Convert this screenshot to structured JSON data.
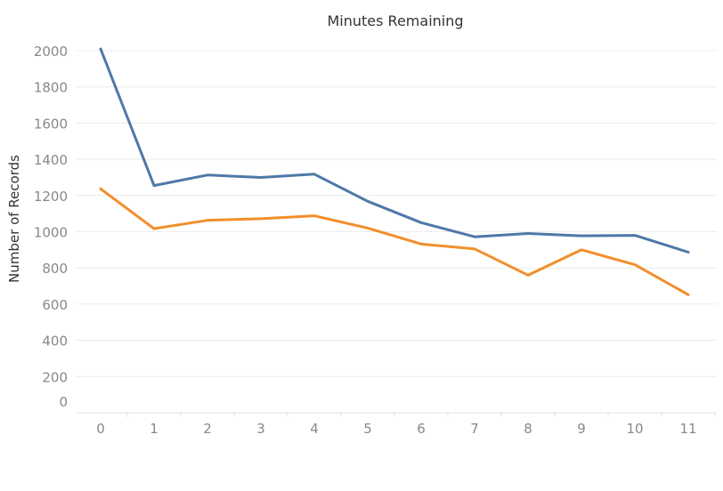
{
  "chart_data": {
    "type": "line",
    "title": "Minutes Remaining",
    "xlabel": "",
    "ylabel": "Number of Records",
    "x": [
      0,
      1,
      2,
      3,
      4,
      5,
      6,
      7,
      8,
      9,
      10,
      11
    ],
    "x_tick_labels": [
      "0",
      "1",
      "2",
      "3",
      "4",
      "5",
      "6",
      "7",
      "8",
      "9",
      "10",
      "11"
    ],
    "ylim": [
      0,
      2000
    ],
    "y_ticks": [
      0,
      200,
      400,
      600,
      800,
      1000,
      1200,
      1400,
      1600,
      1800,
      2000
    ],
    "y_tick_labels": [
      "0",
      "200",
      "400",
      "600",
      "800",
      "1000",
      "1200",
      "1400",
      "1600",
      "1800",
      "2000"
    ],
    "grid": true,
    "series": [
      {
        "color": "#4e79a7",
        "values": [
          2010,
          1255,
          1313,
          1300,
          1318,
          1168,
          1050,
          972,
          990,
          977,
          980,
          887
        ]
      },
      {
        "color": "#f28e2b",
        "values": [
          1237,
          1017,
          1063,
          1072,
          1088,
          1020,
          932,
          905,
          760,
          900,
          818,
          652
        ]
      }
    ]
  }
}
